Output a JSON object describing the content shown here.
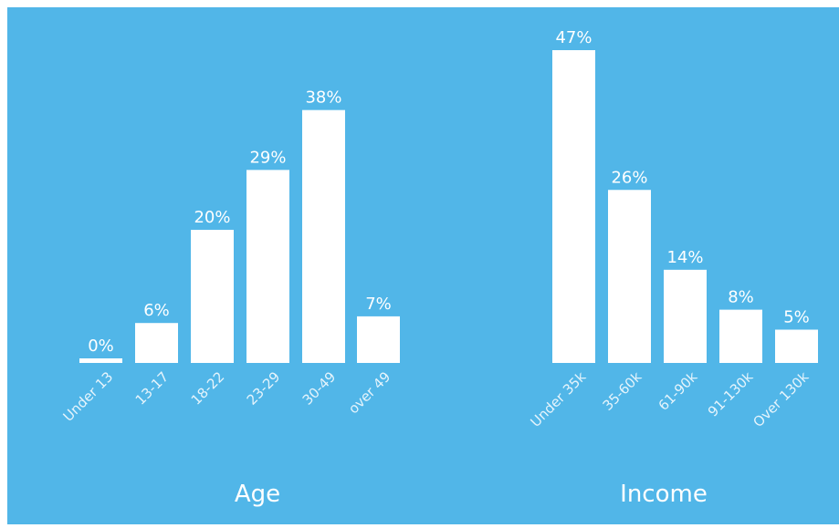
{
  "colors": {
    "background": "#51b6e8",
    "bar": "#ffffff",
    "text": "#ffffff"
  },
  "chart_data": [
    {
      "type": "bar",
      "title": "Age",
      "categories": [
        "Under 13",
        "13-17",
        "18-22",
        "23-29",
        "30-49",
        "over 49"
      ],
      "values": [
        0,
        6,
        20,
        29,
        38,
        7
      ],
      "value_labels": [
        "0%",
        "6%",
        "20%",
        "29%",
        "38%",
        "7%"
      ],
      "unit": "%",
      "ylim": [
        0,
        47
      ],
      "grid": false,
      "legend": "none"
    },
    {
      "type": "bar",
      "title": "Income",
      "categories": [
        "Under 35k",
        "35-60k",
        "61-90k",
        "91-130k",
        "Over 130k"
      ],
      "values": [
        47,
        26,
        14,
        8,
        5
      ],
      "value_labels": [
        "47%",
        "26%",
        "14%",
        "8%",
        "5%"
      ],
      "unit": "%",
      "ylim": [
        0,
        47
      ],
      "grid": false,
      "legend": "none"
    }
  ]
}
